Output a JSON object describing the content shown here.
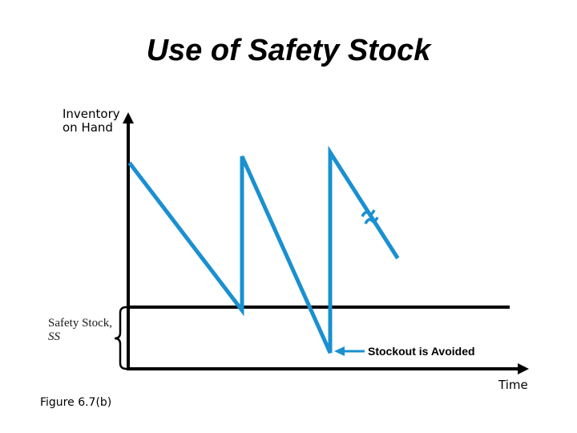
{
  "title": "Use of Safety Stock",
  "axes": {
    "y_label": "Inventory\non Hand",
    "x_label": "Time"
  },
  "safety_stock": {
    "label": "Safety Stock,",
    "symbol": "SS"
  },
  "annotation": "Stockout is Avoided",
  "caption": "Figure 6.7(b)",
  "colors": {
    "inventory_line": "#1a90d0",
    "axes": "#000000",
    "arrow": "#1a90d0"
  }
}
